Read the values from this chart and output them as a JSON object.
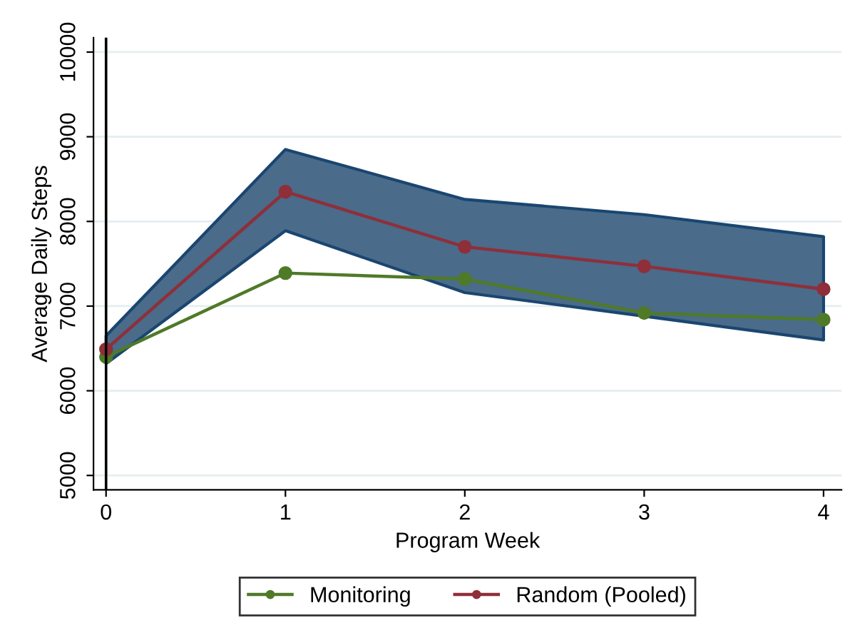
{
  "chart_data": {
    "type": "line",
    "xlabel": "Program Week",
    "ylabel": "Average Daily Steps",
    "x": [
      0,
      1,
      2,
      3,
      4
    ],
    "series": [
      {
        "name": "Monitoring",
        "color": "#4f7a28",
        "values": [
          6400,
          7390,
          7320,
          6920,
          6840
        ]
      },
      {
        "name": "Random (Pooled)",
        "color": "#8f2f3a",
        "values": [
          6490,
          8350,
          7700,
          7470,
          7200
        ],
        "lower": [
          6320,
          7890,
          7160,
          6880,
          6600
        ],
        "upper": [
          6650,
          8850,
          8260,
          8080,
          7820
        ]
      }
    ],
    "xlim": [
      -0.07,
      4.1
    ],
    "ylim": [
      4830,
      10170
    ],
    "xticks": [
      0,
      1,
      2,
      3,
      4
    ],
    "yticks": [
      5000,
      6000,
      7000,
      8000,
      9000,
      10000
    ],
    "ref_lines": [
      {
        "axis": "x",
        "value": 0,
        "color": "#000000"
      }
    ],
    "grid": "y",
    "legend": "bottom",
    "marker": "circle",
    "line_style": "solid"
  }
}
